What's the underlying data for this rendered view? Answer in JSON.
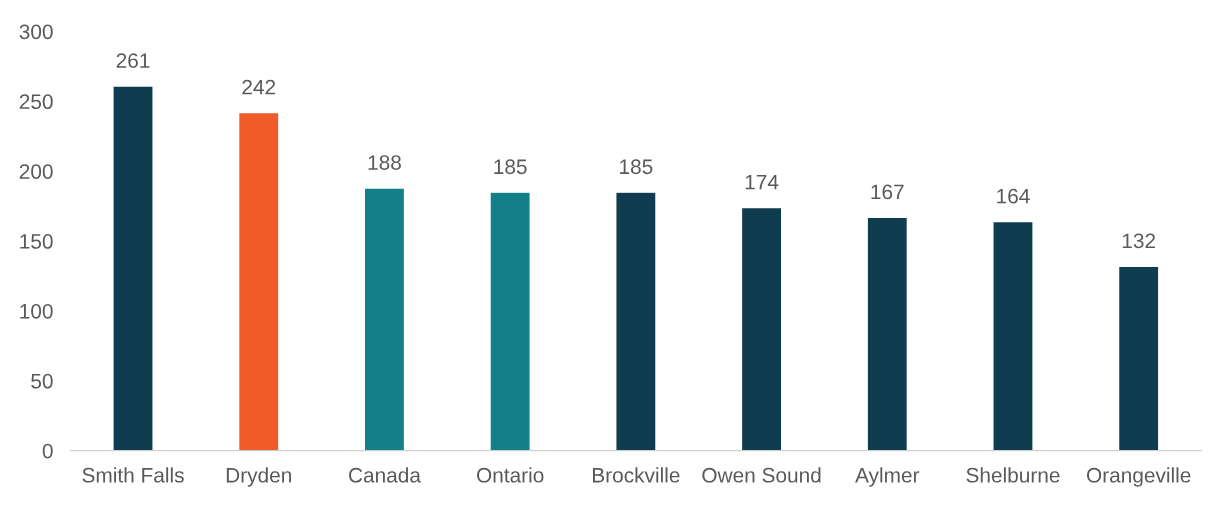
{
  "chart_data": {
    "type": "bar",
    "categories": [
      "Smith Falls",
      "Dryden",
      "Canada",
      "Ontario",
      "Brockville",
      "Owen Sound",
      "Aylmer",
      "Shelburne",
      "Orangeville"
    ],
    "values": [
      261,
      242,
      188,
      185,
      185,
      174,
      167,
      164,
      132
    ],
    "colors": [
      "#0f3c4f",
      "#f15a29",
      "#127f89",
      "#127f89",
      "#0f3c4f",
      "#0f3c4f",
      "#0f3c4f",
      "#0f3c4f",
      "#0f3c4f"
    ],
    "ylim": [
      0,
      300
    ],
    "yticks": [
      0,
      50,
      100,
      150,
      200,
      250,
      300
    ],
    "data_labels": true,
    "grid": false,
    "legend": false
  }
}
